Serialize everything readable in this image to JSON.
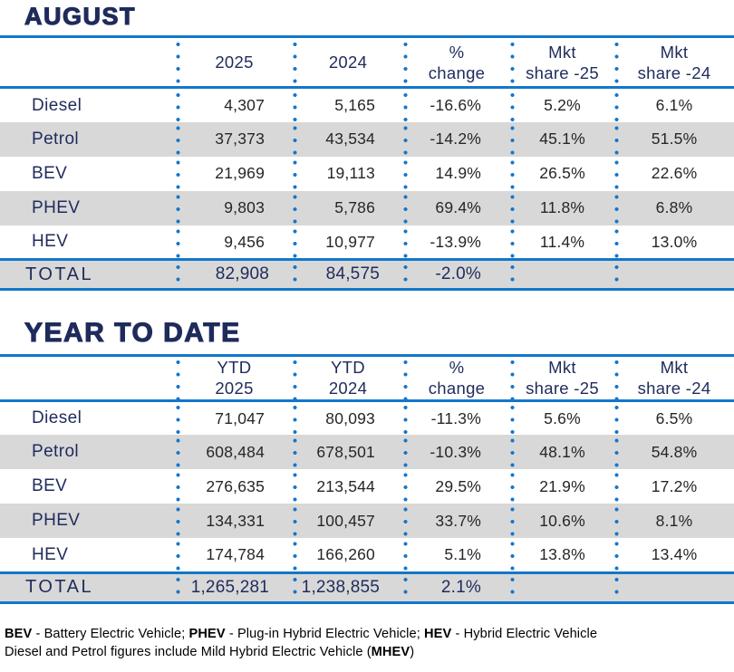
{
  "colors": {
    "navy_text": "#1F2B5B",
    "rule_blue": "#1377CB",
    "dot_blue": "#1476CC",
    "row_gray": "#D8D8D8",
    "number_text": "#262626"
  },
  "august": {
    "title": "AUGUST",
    "headers": {
      "year1": "2025",
      "year2": "2024",
      "change": "%\nchange",
      "share25": "Mkt\nshare -25",
      "share24": "Mkt\nshare -24"
    },
    "rows": [
      {
        "label": "Diesel",
        "v1": "4,307",
        "v2": "5,165",
        "change": "-16.6%",
        "share25": "5.2%",
        "share24": "6.1%"
      },
      {
        "label": "Petrol",
        "v1": "37,373",
        "v2": "43,534",
        "change": "-14.2%",
        "share25": "45.1%",
        "share24": "51.5%"
      },
      {
        "label": "BEV",
        "v1": "21,969",
        "v2": "19,113",
        "change": "14.9%",
        "share25": "26.5%",
        "share24": "22.6%"
      },
      {
        "label": "PHEV",
        "v1": "9,803",
        "v2": "5,786",
        "change": "69.4%",
        "share25": "11.8%",
        "share24": "6.8%"
      },
      {
        "label": "HEV",
        "v1": "9,456",
        "v2": "10,977",
        "change": "-13.9%",
        "share25": "11.4%",
        "share24": "13.0%"
      }
    ],
    "total": {
      "label": "TOTAL",
      "v1": "82,908",
      "v2": "84,575",
      "change": "-2.0%",
      "share25": "",
      "share24": ""
    }
  },
  "ytd": {
    "title": "YEAR TO DATE",
    "headers": {
      "year1": "YTD\n2025",
      "year2": "YTD\n2024",
      "change": "%\nchange",
      "share25": "Mkt\nshare -25",
      "share24": "Mkt\nshare -24"
    },
    "rows": [
      {
        "label": "Diesel",
        "v1": "71,047",
        "v2": "80,093",
        "change": "-11.3%",
        "share25": "5.6%",
        "share24": "6.5%"
      },
      {
        "label": "Petrol",
        "v1": "608,484",
        "v2": "678,501",
        "change": "-10.3%",
        "share25": "48.1%",
        "share24": "54.8%"
      },
      {
        "label": "BEV",
        "v1": "276,635",
        "v2": "213,544",
        "change": "29.5%",
        "share25": "21.9%",
        "share24": "17.2%"
      },
      {
        "label": "PHEV",
        "v1": "134,331",
        "v2": "100,457",
        "change": "33.7%",
        "share25": "10.6%",
        "share24": "8.1%"
      },
      {
        "label": "HEV",
        "v1": "174,784",
        "v2": "166,260",
        "change": "5.1%",
        "share25": "13.8%",
        "share24": "13.4%"
      }
    ],
    "total": {
      "label": "TOTAL",
      "v1": "1,265,281",
      "v2": "1,238,855",
      "change": "2.1%",
      "share25": "",
      "share24": ""
    }
  },
  "footnote": {
    "bev": "BEV",
    "bev_desc": " - Battery Electric Vehicle; ",
    "phev": "PHEV",
    "phev_desc": " - Plug-in Hybrid Electric Vehicle; ",
    "hev": "HEV",
    "hev_desc": " - Hybrid Electric Vehicle",
    "line2_pre": "Diesel and Petrol figures include Mild Hybrid Electric Vehicle (",
    "mhev": "MHEV",
    "line2_post": ")"
  }
}
